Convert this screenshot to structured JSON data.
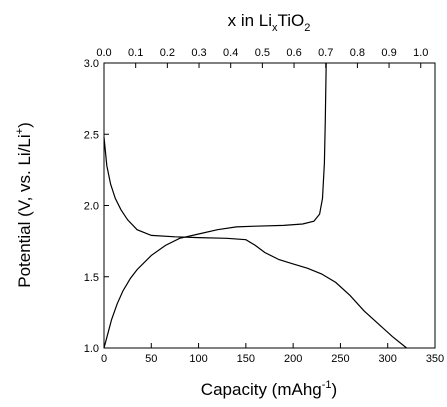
{
  "chart_data": {
    "type": "line",
    "x_label": [
      "Capacity (mAhg",
      "-1",
      ")"
    ],
    "y_label": [
      "Potential (V, vs. Li/Li",
      "+",
      ")"
    ],
    "x2_label": [
      "x in Li",
      "x",
      "TiO",
      "2"
    ],
    "xlim": [
      0,
      350
    ],
    "xticks": [
      0,
      50,
      100,
      150,
      200,
      250,
      300,
      350
    ],
    "x2lim": [
      0,
      1.045
    ],
    "x2ticks": [
      {
        "value": 0,
        "label": "0.0"
      },
      0.1,
      0.2,
      0.3,
      0.4,
      0.5,
      0.6,
      0.7,
      0.8,
      0.9,
      {
        "value": 1,
        "label": "1.0"
      }
    ],
    "ylim": [
      1,
      3
    ],
    "yticks": [
      {
        "value": 1,
        "label": "1.0"
      },
      1.5,
      {
        "value": 2,
        "label": "2.0"
      },
      2.5,
      {
        "value": 3,
        "label": "3.0"
      }
    ],
    "series": [
      {
        "color": "#000000",
        "x": [
          0,
          3,
          7,
          12,
          18,
          25,
          35,
          50,
          75,
          100,
          130,
          150,
          160,
          170,
          185,
          200,
          215,
          230,
          245,
          260,
          275,
          290,
          305,
          320
        ],
        "values": [
          2.48,
          2.28,
          2.15,
          2.05,
          1.97,
          1.9,
          1.83,
          1.79,
          1.78,
          1.775,
          1.77,
          1.76,
          1.72,
          1.67,
          1.62,
          1.59,
          1.56,
          1.52,
          1.46,
          1.37,
          1.26,
          1.17,
          1.08,
          1.0
        ]
      },
      {
        "color": "#000000",
        "x": [
          0,
          4,
          8,
          14,
          20,
          28,
          35,
          50,
          65,
          80,
          100,
          120,
          140,
          160,
          190,
          210,
          222,
          228,
          231,
          233,
          234,
          235
        ],
        "values": [
          1.0,
          1.1,
          1.2,
          1.31,
          1.4,
          1.49,
          1.55,
          1.65,
          1.72,
          1.77,
          1.8,
          1.83,
          1.85,
          1.855,
          1.86,
          1.87,
          1.89,
          1.94,
          2.05,
          2.3,
          2.6,
          3.0
        ]
      }
    ]
  }
}
